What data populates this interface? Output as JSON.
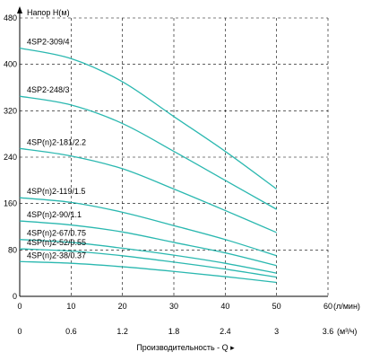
{
  "chart_data": {
    "type": "line",
    "ylabel": "Напор H(м)",
    "xlabel": "Производительность - Q ▸",
    "x_unit_primary": "(л/мин)",
    "x_unit_secondary": "(м³/ч)",
    "ylim": [
      0,
      480
    ],
    "yticks": [
      "0",
      "80",
      "160",
      "240",
      "320",
      "400",
      "480"
    ],
    "xlim": [
      0,
      60
    ],
    "xticks_primary": [
      "0",
      "10",
      "20",
      "30",
      "40",
      "50",
      "60"
    ],
    "xticks_secondary": [
      "0",
      "0.6",
      "1.2",
      "1.8",
      "2.4",
      "3",
      "3.6"
    ],
    "grid": true,
    "line_color": "#2bb8b0",
    "series": [
      {
        "name": "4SP2-309/4",
        "x": [
          0,
          10,
          20,
          30,
          40,
          50
        ],
        "y": [
          428,
          410,
          370,
          310,
          250,
          185
        ]
      },
      {
        "name": "4SP2-248/3",
        "x": [
          0,
          10,
          20,
          30,
          40,
          50
        ],
        "y": [
          345,
          330,
          298,
          250,
          200,
          150
        ]
      },
      {
        "name": "4SP(n)2-181/2.2",
        "x": [
          0,
          10,
          20,
          30,
          40,
          50
        ],
        "y": [
          255,
          242,
          220,
          185,
          148,
          110
        ]
      },
      {
        "name": "4SP(n)2-119/1.5",
        "x": [
          0,
          10,
          20,
          30,
          40,
          50
        ],
        "y": [
          170,
          162,
          145,
          122,
          98,
          70
        ]
      },
      {
        "name": "4SP(n)2-90/1.1",
        "x": [
          0,
          10,
          20,
          30,
          40,
          50
        ],
        "y": [
          130,
          123,
          111,
          93,
          75,
          53
        ]
      },
      {
        "name": "4SP(n)2-67/0.75",
        "x": [
          0,
          10,
          20,
          30,
          40,
          50
        ],
        "y": [
          98,
          93,
          83,
          71,
          57,
          40
        ]
      },
      {
        "name": "4SP(n)2-52/0.55",
        "x": [
          0,
          10,
          20,
          30,
          40,
          50
        ],
        "y": [
          82,
          78,
          70,
          59,
          47,
          33
        ]
      },
      {
        "name": "4SP(n)2-38/0.37",
        "x": [
          0,
          10,
          20,
          30,
          40,
          50
        ],
        "y": [
          60,
          57,
          51,
          43,
          34,
          24
        ]
      }
    ]
  }
}
